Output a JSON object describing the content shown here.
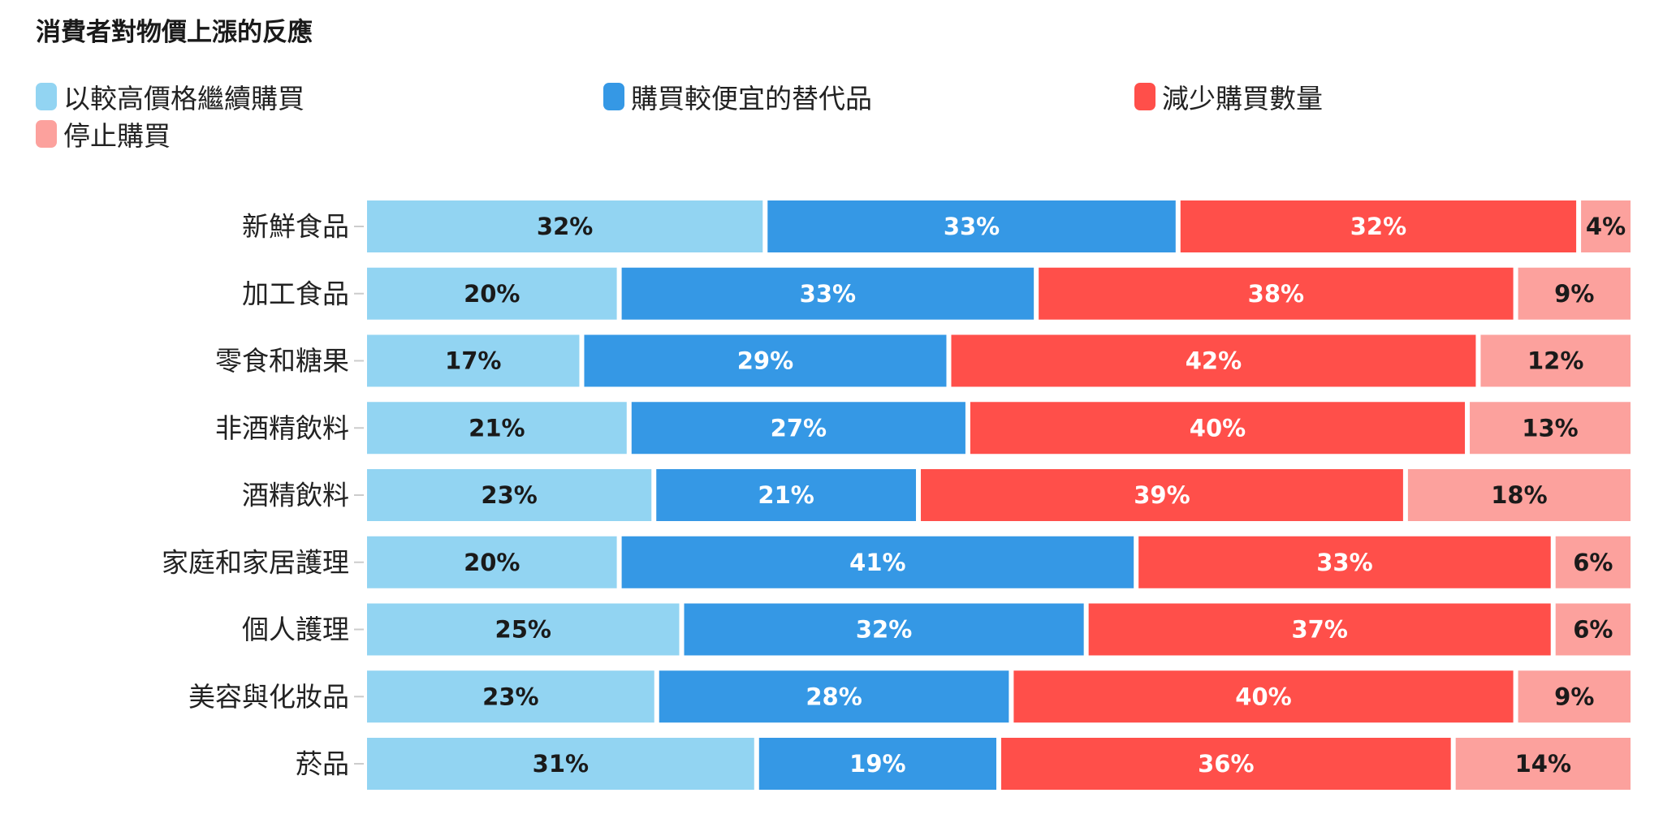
{
  "chart_data": {
    "type": "bar",
    "orientation": "horizontal",
    "stacked": true,
    "title": "消費者對物價上漲的反應",
    "categories": [
      "新鮮食品",
      "加工食品",
      "零食和糖果",
      "非酒精飲料",
      "酒精飲料",
      "家庭和家居護理",
      "個人護理",
      "美容與化妝品",
      "菸品"
    ],
    "series": [
      {
        "name": "以較高價格繼續購買",
        "color": "#92d4f2",
        "text_color": "#1a1a1a",
        "values": [
          32,
          20,
          17,
          21,
          23,
          20,
          25,
          23,
          31
        ]
      },
      {
        "name": "購買較便宜的替代品",
        "color": "#3598e5",
        "text_color": "#ffffff",
        "values": [
          33,
          33,
          29,
          27,
          21,
          41,
          32,
          28,
          19
        ]
      },
      {
        "name": "減少購買數量",
        "color": "#ff4f4a",
        "text_color": "#ffffff",
        "values": [
          32,
          38,
          42,
          40,
          39,
          33,
          37,
          40,
          36
        ]
      },
      {
        "name": "停止購買",
        "color": "#fca19d",
        "text_color": "#1a1a1a",
        "values": [
          4,
          9,
          12,
          13,
          18,
          6,
          6,
          9,
          14
        ]
      }
    ],
    "value_format": "{v}%",
    "legend_position": "top-left",
    "grid": false,
    "xlabel": "",
    "ylabel": ""
  }
}
